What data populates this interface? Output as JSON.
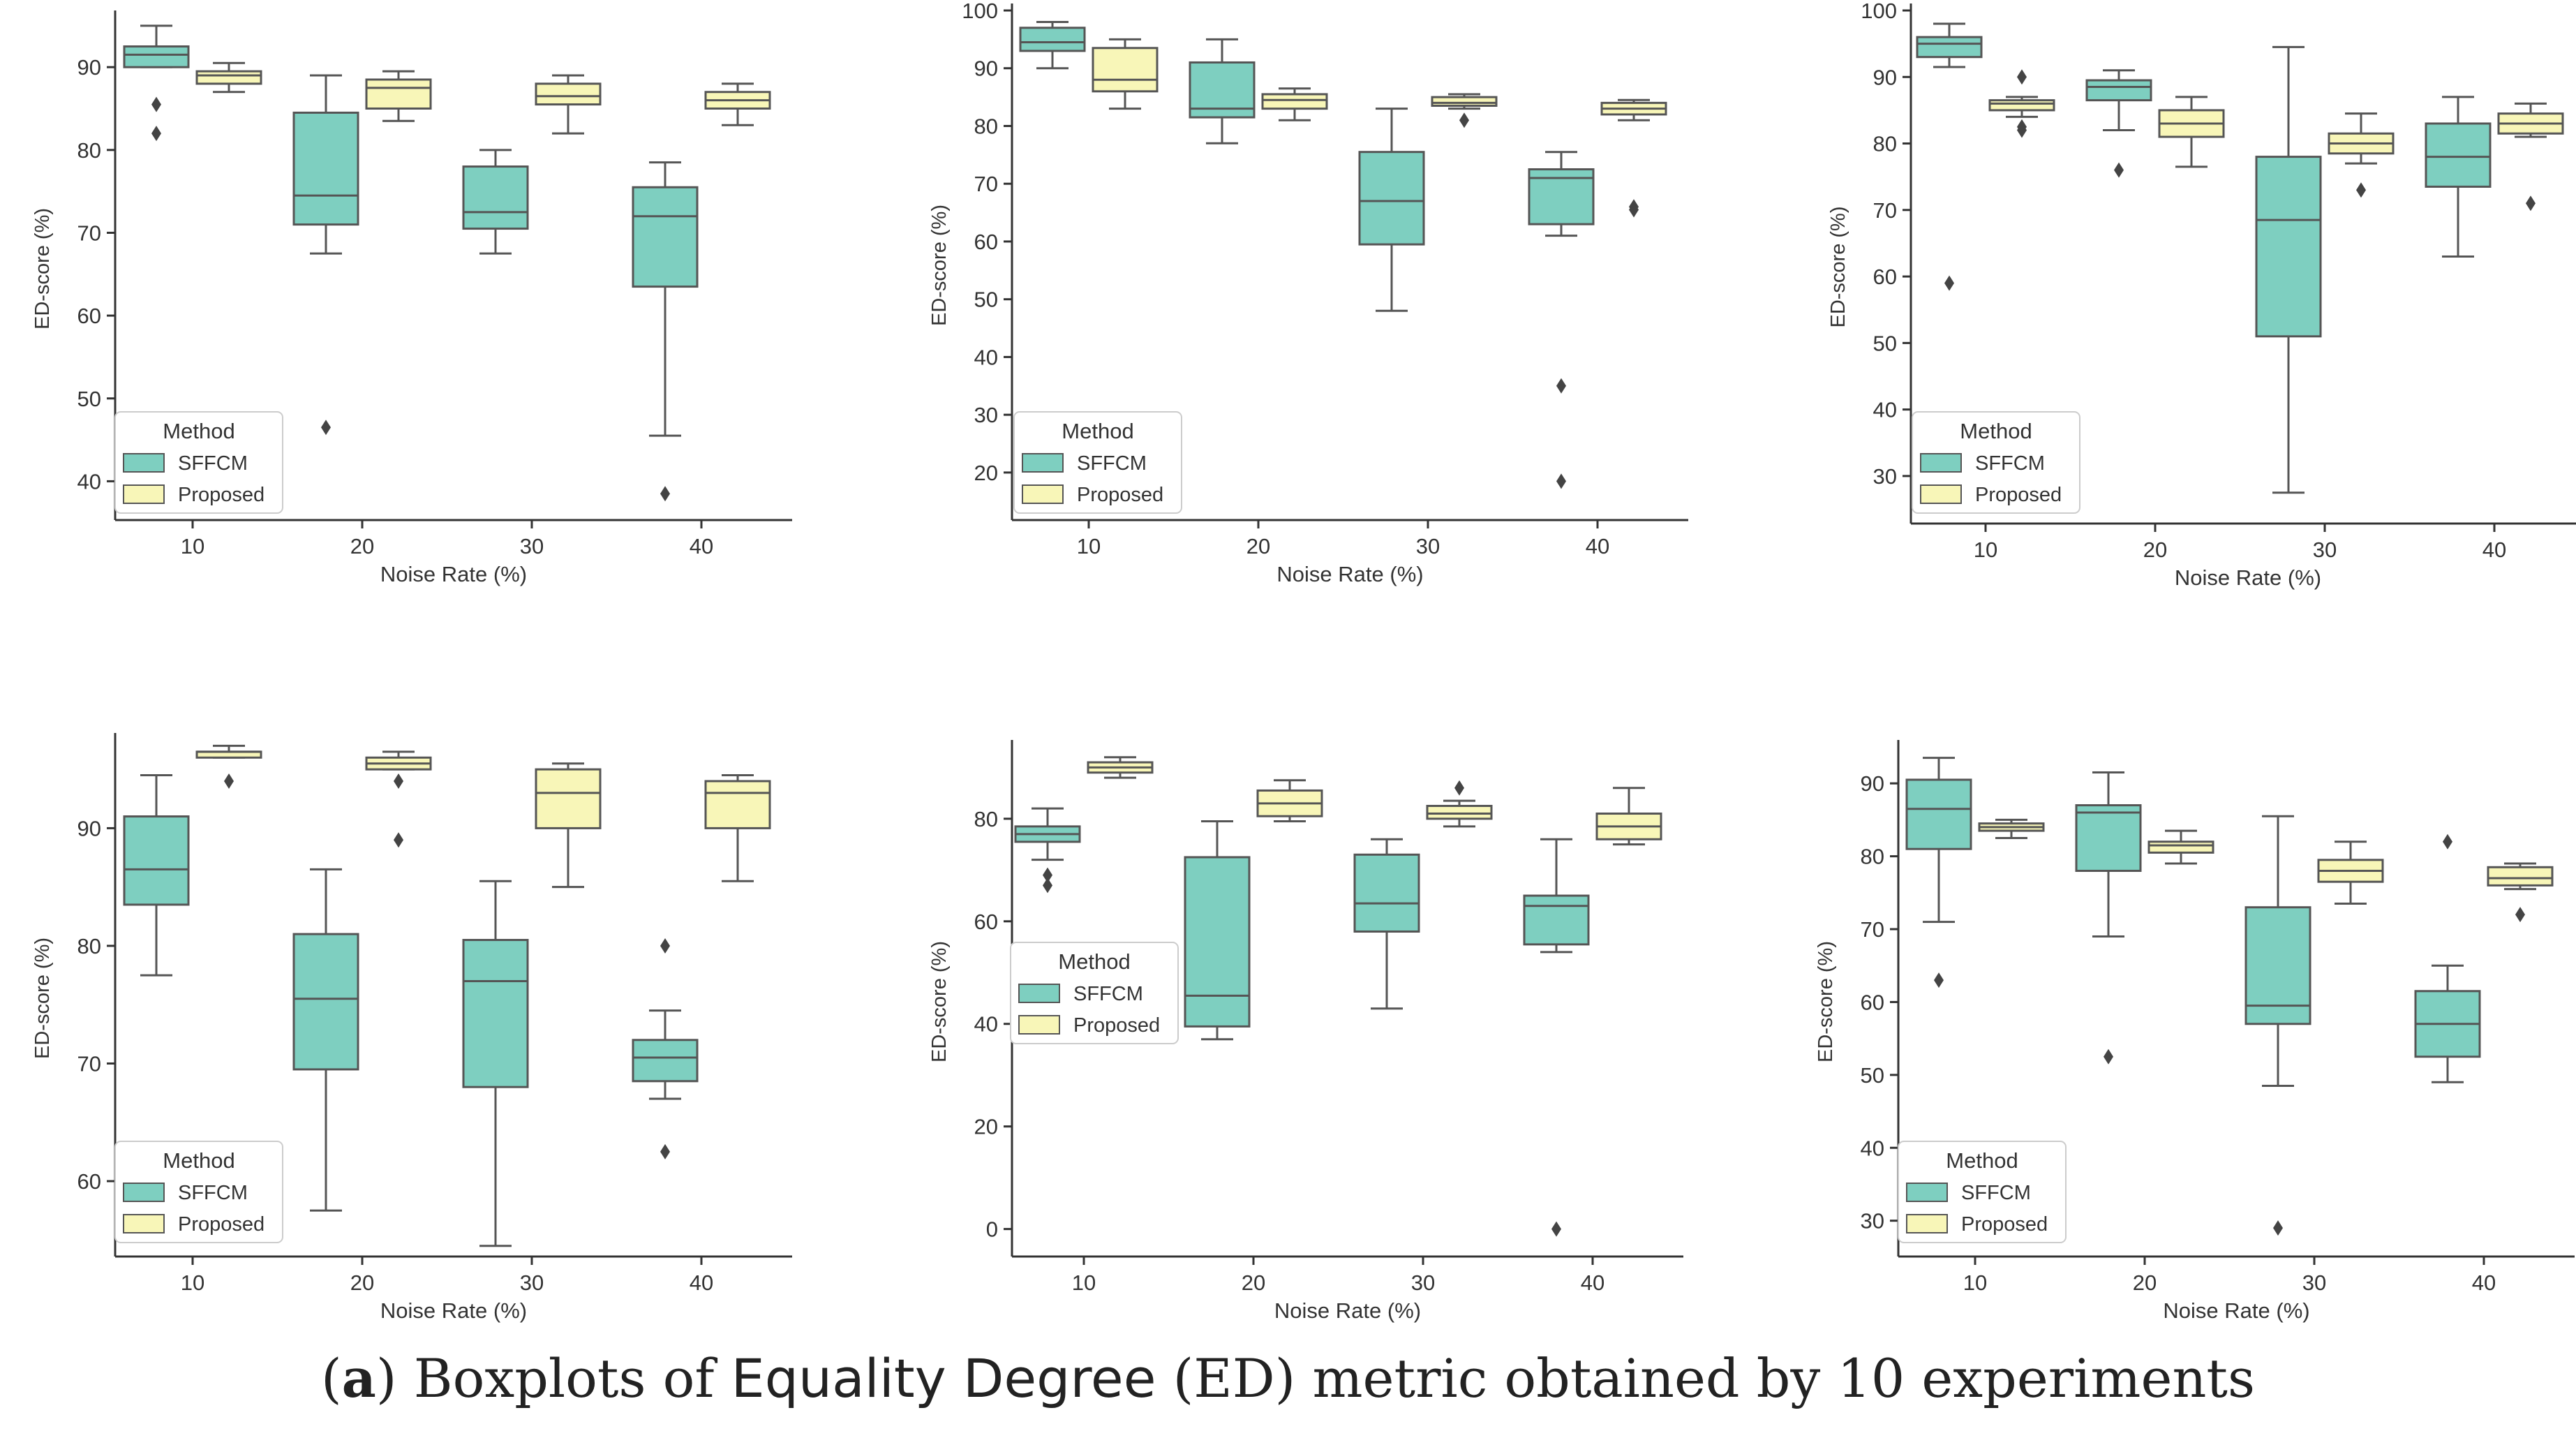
{
  "caption": {
    "open_paren": "(",
    "letter": "a",
    "close_paren": ")",
    "pre": " Boxplots of ",
    "metric": "Equality Degree",
    "mid": " (ED) metric obtained by 10 experiments"
  },
  "colors": {
    "sffcm": "#7ecfc0",
    "proposed": "#f8f6b8",
    "edge": "#555555",
    "outlier": "#444444"
  },
  "chart_data": [
    {
      "type": "box",
      "ylabel": "ED-score (%)",
      "xlabel": "Noise Rate (%)",
      "categories": [
        "10",
        "20",
        "30",
        "40"
      ],
      "yticks": [
        40,
        50,
        60,
        70,
        80,
        90
      ],
      "ylim": [
        37,
        96
      ],
      "legend": {
        "title": "Method",
        "position": "lower-left",
        "entries": [
          "SFFCM",
          "Proposed"
        ]
      },
      "series": [
        {
          "name": "SFFCM",
          "boxes": [
            {
              "min": 90,
              "q1": 90,
              "median": 91.5,
              "q3": 92.5,
              "max": 95,
              "outliers": [
                85.5,
                82
              ]
            },
            {
              "min": 67.5,
              "q1": 71,
              "median": 74.5,
              "q3": 84.5,
              "max": 89,
              "outliers": [
                46.5
              ]
            },
            {
              "min": 67.5,
              "q1": 70.5,
              "median": 72.5,
              "q3": 78,
              "max": 80,
              "outliers": []
            },
            {
              "min": 45.5,
              "q1": 63.5,
              "median": 72,
              "q3": 75.5,
              "max": 78.5,
              "outliers": [
                38.5
              ]
            }
          ]
        },
        {
          "name": "Proposed",
          "boxes": [
            {
              "min": 87,
              "q1": 88,
              "median": 89,
              "q3": 89.5,
              "max": 90.5,
              "outliers": []
            },
            {
              "min": 83.5,
              "q1": 85,
              "median": 87.5,
              "q3": 88.5,
              "max": 89.5,
              "outliers": []
            },
            {
              "min": 82,
              "q1": 85.5,
              "median": 86.5,
              "q3": 88,
              "max": 89,
              "outliers": []
            },
            {
              "min": 83,
              "q1": 85,
              "median": 86,
              "q3": 87,
              "max": 88,
              "outliers": []
            }
          ]
        }
      ]
    },
    {
      "type": "box",
      "ylabel": "ED-score (%)",
      "xlabel": "Noise Rate (%)",
      "categories": [
        "10",
        "20",
        "30",
        "40"
      ],
      "yticks": [
        20,
        30,
        40,
        50,
        60,
        70,
        80,
        90,
        100
      ],
      "ylim": [
        16,
        100
      ],
      "legend": {
        "title": "Method",
        "position": "lower-left",
        "entries": [
          "SFFCM",
          "Proposed"
        ]
      },
      "series": [
        {
          "name": "SFFCM",
          "boxes": [
            {
              "min": 90,
              "q1": 93,
              "median": 94.5,
              "q3": 97,
              "max": 98,
              "outliers": []
            },
            {
              "min": 77,
              "q1": 81.5,
              "median": 83,
              "q3": 91,
              "max": 95,
              "outliers": []
            },
            {
              "min": 48,
              "q1": 59.5,
              "median": 67,
              "q3": 75.5,
              "max": 83,
              "outliers": []
            },
            {
              "min": 61,
              "q1": 63,
              "median": 71,
              "q3": 72.5,
              "max": 75.5,
              "outliers": [
                35,
                18.5
              ]
            }
          ]
        },
        {
          "name": "Proposed",
          "boxes": [
            {
              "min": 83,
              "q1": 86,
              "median": 88,
              "q3": 93.5,
              "max": 95,
              "outliers": []
            },
            {
              "min": 81,
              "q1": 83,
              "median": 84.5,
              "q3": 85.5,
              "max": 86.5,
              "outliers": []
            },
            {
              "min": 83,
              "q1": 83.5,
              "median": 84,
              "q3": 85,
              "max": 85.5,
              "outliers": [
                81
              ]
            },
            {
              "min": 81,
              "q1": 82,
              "median": 83,
              "q3": 84,
              "max": 84.5,
              "outliers": [
                66,
                65.5
              ]
            }
          ]
        }
      ]
    },
    {
      "type": "box",
      "ylabel": "ED-score (%)",
      "xlabel": "Noise Rate (%)",
      "categories": [
        "10",
        "20",
        "30",
        "40"
      ],
      "yticks": [
        30,
        40,
        50,
        60,
        70,
        80,
        90,
        100
      ],
      "ylim": [
        26,
        100
      ],
      "legend": {
        "title": "Method",
        "position": "lower-left",
        "entries": [
          "SFFCM",
          "Proposed"
        ]
      },
      "series": [
        {
          "name": "SFFCM",
          "boxes": [
            {
              "min": 91.5,
              "q1": 93,
              "median": 95,
              "q3": 96,
              "max": 98,
              "outliers": [
                59
              ]
            },
            {
              "min": 82,
              "q1": 86.5,
              "median": 88.5,
              "q3": 89.5,
              "max": 91,
              "outliers": [
                76
              ]
            },
            {
              "min": 27.5,
              "q1": 51,
              "median": 68.5,
              "q3": 78,
              "max": 94.5,
              "outliers": []
            },
            {
              "min": 63,
              "q1": 73.5,
              "median": 78,
              "q3": 83,
              "max": 87,
              "outliers": []
            }
          ]
        },
        {
          "name": "Proposed",
          "boxes": [
            {
              "min": 84,
              "q1": 85,
              "median": 86,
              "q3": 86.5,
              "max": 87,
              "outliers": [
                90,
                82.5,
                82
              ]
            },
            {
              "min": 76.5,
              "q1": 81,
              "median": 83,
              "q3": 85,
              "max": 87,
              "outliers": []
            },
            {
              "min": 77,
              "q1": 78.5,
              "median": 80,
              "q3": 81.5,
              "max": 84.5,
              "outliers": [
                73
              ]
            },
            {
              "min": 81,
              "q1": 81.5,
              "median": 83,
              "q3": 84.5,
              "max": 86,
              "outliers": [
                71
              ]
            }
          ]
        }
      ]
    },
    {
      "type": "box",
      "ylabel": "ED-score (%)",
      "xlabel": "Noise Rate (%)",
      "categories": [
        "10",
        "20",
        "30",
        "40"
      ],
      "yticks": [
        60,
        70,
        80,
        90
      ],
      "ylim": [
        53,
        97.5
      ],
      "legend": {
        "title": "Method",
        "position": "lower-left",
        "entries": [
          "SFFCM",
          "Proposed"
        ]
      },
      "series": [
        {
          "name": "SFFCM",
          "boxes": [
            {
              "min": 77.5,
              "q1": 83.5,
              "median": 86.5,
              "q3": 91,
              "max": 94.5,
              "outliers": []
            },
            {
              "min": 57.5,
              "q1": 69.5,
              "median": 75.5,
              "q3": 81,
              "max": 86.5,
              "outliers": []
            },
            {
              "min": 54.5,
              "q1": 68,
              "median": 77,
              "q3": 80.5,
              "max": 85.5,
              "outliers": []
            },
            {
              "min": 67,
              "q1": 68.5,
              "median": 70.5,
              "q3": 72,
              "max": 74.5,
              "outliers": [
                80,
                62.5
              ]
            }
          ]
        },
        {
          "name": "Proposed",
          "boxes": [
            {
              "min": 96,
              "q1": 96,
              "median": 96.5,
              "q3": 96.5,
              "max": 97,
              "outliers": [
                94
              ]
            },
            {
              "min": 95,
              "q1": 95,
              "median": 95.5,
              "q3": 96,
              "max": 96.5,
              "outliers": [
                94,
                89
              ]
            },
            {
              "min": 85,
              "q1": 90,
              "median": 93,
              "q3": 95,
              "max": 95.5,
              "outliers": []
            },
            {
              "min": 85.5,
              "q1": 90,
              "median": 93,
              "q3": 94,
              "max": 94.5,
              "outliers": []
            }
          ]
        }
      ]
    },
    {
      "type": "box",
      "ylabel": "ED-score (%)",
      "xlabel": "Noise Rate (%)",
      "categories": [
        "10",
        "20",
        "30",
        "40"
      ],
      "yticks": [
        0,
        20,
        40,
        60,
        80
      ],
      "ylim": [
        -4,
        94
      ],
      "legend": {
        "title": "Method",
        "position": "left",
        "entries": [
          "SFFCM",
          "Proposed"
        ]
      },
      "series": [
        {
          "name": "SFFCM",
          "boxes": [
            {
              "min": 72,
              "q1": 75.5,
              "median": 77,
              "q3": 78.5,
              "max": 82,
              "outliers": [
                69,
                67
              ]
            },
            {
              "min": 37,
              "q1": 39.5,
              "median": 45.5,
              "q3": 72.5,
              "max": 79.5,
              "outliers": []
            },
            {
              "min": 43,
              "q1": 58,
              "median": 63.5,
              "q3": 73,
              "max": 76,
              "outliers": []
            },
            {
              "min": 54,
              "q1": 55.5,
              "median": 63,
              "q3": 65,
              "max": 76,
              "outliers": [
                0
              ]
            }
          ]
        },
        {
          "name": "Proposed",
          "boxes": [
            {
              "min": 88,
              "q1": 89,
              "median": 90,
              "q3": 91,
              "max": 92,
              "outliers": []
            },
            {
              "min": 79.5,
              "q1": 80.5,
              "median": 83,
              "q3": 85.5,
              "max": 87.5,
              "outliers": []
            },
            {
              "min": 78.5,
              "q1": 80,
              "median": 81,
              "q3": 82.5,
              "max": 83.5,
              "outliers": [
                86
              ]
            },
            {
              "min": 75,
              "q1": 76,
              "median": 78.5,
              "q3": 81,
              "max": 86,
              "outliers": []
            }
          ]
        }
      ]
    },
    {
      "type": "box",
      "ylabel": "ED-score (%)",
      "xlabel": "Noise Rate (%)",
      "categories": [
        "10",
        "20",
        "30",
        "40"
      ],
      "yticks": [
        30,
        40,
        50,
        60,
        70,
        80,
        90
      ],
      "ylim": [
        27,
        95
      ],
      "legend": {
        "title": "Method",
        "position": "lower-left",
        "entries": [
          "SFFCM",
          "Proposed"
        ]
      },
      "series": [
        {
          "name": "SFFCM",
          "boxes": [
            {
              "min": 71,
              "q1": 81,
              "median": 86.5,
              "q3": 90.5,
              "max": 93.5,
              "outliers": [
                63
              ]
            },
            {
              "min": 69,
              "q1": 78,
              "median": 86,
              "q3": 87,
              "max": 91.5,
              "outliers": [
                52.5
              ]
            },
            {
              "min": 48.5,
              "q1": 57,
              "median": 59.5,
              "q3": 73,
              "max": 85.5,
              "outliers": [
                29
              ]
            },
            {
              "min": 49,
              "q1": 52.5,
              "median": 57,
              "q3": 61.5,
              "max": 65,
              "outliers": [
                82
              ]
            }
          ]
        },
        {
          "name": "Proposed",
          "boxes": [
            {
              "min": 82.5,
              "q1": 83.5,
              "median": 84,
              "q3": 84.5,
              "max": 85,
              "outliers": []
            },
            {
              "min": 79,
              "q1": 80.5,
              "median": 81.5,
              "q3": 82,
              "max": 83.5,
              "outliers": []
            },
            {
              "min": 73.5,
              "q1": 76.5,
              "median": 78,
              "q3": 79.5,
              "max": 82,
              "outliers": []
            },
            {
              "min": 75.5,
              "q1": 76,
              "median": 77,
              "q3": 78.5,
              "max": 79,
              "outliers": [
                72
              ]
            }
          ]
        }
      ]
    }
  ]
}
